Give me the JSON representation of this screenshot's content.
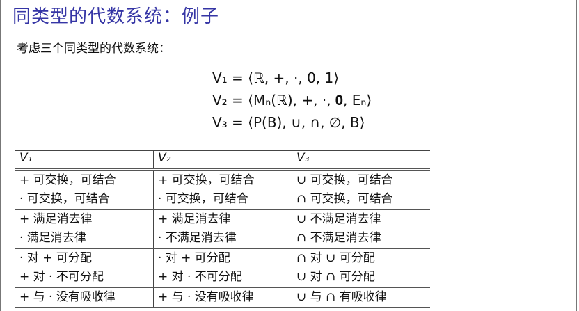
{
  "title": "同类型的代数系统：例子",
  "intro": "考虑三个同类型的代数系统：",
  "equations": [
    "V₁ = ⟨ℝ, +, ·, 0, 1⟩",
    "V₂ = ⟨Mₙ(ℝ), +, ·, 𝟎, Eₙ⟩",
    "V₃ = ⟨P(B), ∪, ∩, ∅, B⟩"
  ],
  "table": {
    "headers": [
      "V₁",
      "V₂",
      "V₃"
    ],
    "rows": [
      [
        [
          "+ 可交换，可结合",
          "· 可交换，可结合"
        ],
        [
          "+ 可交换，可结合",
          "· 可交换，可结合"
        ],
        [
          "∪ 可交换，可结合",
          "∩ 可交换，可结合"
        ]
      ],
      [
        [
          "+ 满足消去律",
          "· 满足消去律"
        ],
        [
          "+ 满足消去律",
          "· 不满足消去律"
        ],
        [
          "∪ 不满足消去律",
          "∩ 不满足消去律"
        ]
      ],
      [
        [
          "· 对 + 可分配",
          "+ 对 · 不可分配"
        ],
        [
          "· 对 + 可分配",
          "+ 对 · 不可分配"
        ],
        [
          "∩ 对 ∪ 可分配",
          "∪ 对 ∩ 可分配"
        ]
      ],
      [
        [
          "+ 与 · 没有吸收律"
        ],
        [
          "+ 与 · 没有吸收律"
        ],
        [
          "∪ 与 ∩ 有吸收律"
        ]
      ]
    ]
  },
  "colors": {
    "title": "#3535a5"
  }
}
